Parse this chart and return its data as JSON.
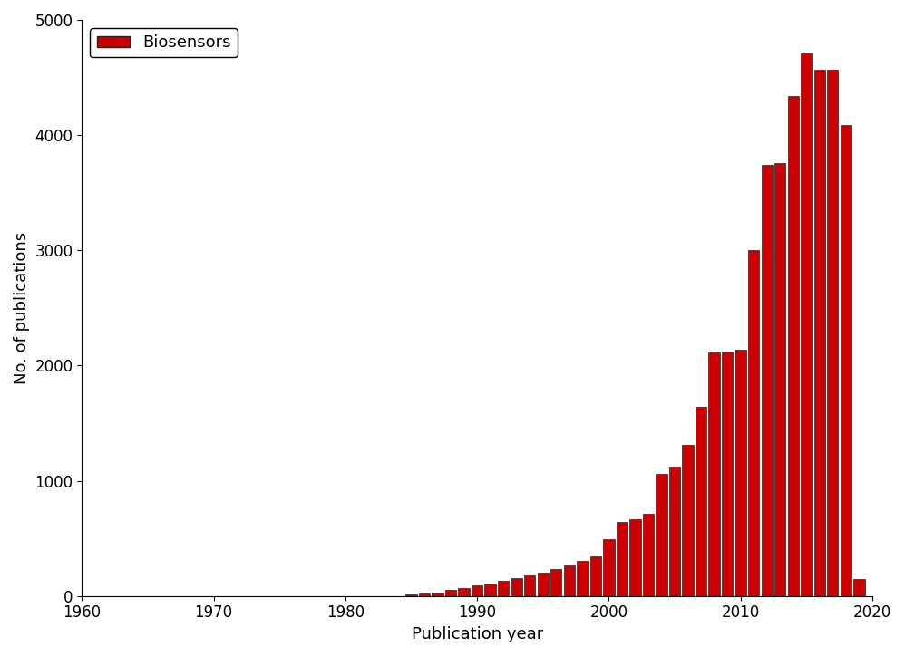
{
  "years": [
    1962,
    1963,
    1964,
    1965,
    1966,
    1967,
    1968,
    1969,
    1970,
    1971,
    1972,
    1973,
    1974,
    1975,
    1976,
    1977,
    1978,
    1979,
    1980,
    1981,
    1982,
    1983,
    1984,
    1985,
    1986,
    1987,
    1988,
    1989,
    1990,
    1991,
    1992,
    1993,
    1994,
    1995,
    1996,
    1997,
    1998,
    1999,
    2000,
    2001,
    2002,
    2003,
    2004,
    2005,
    2006,
    2007,
    2008,
    2009,
    2010,
    2011,
    2012,
    2013,
    2014,
    2015,
    2016,
    2017,
    2018,
    2019
  ],
  "values": [
    0,
    0,
    0,
    0,
    0,
    0,
    0,
    0,
    0,
    0,
    0,
    0,
    0,
    0,
    0,
    0,
    0,
    0,
    0,
    0,
    0,
    0,
    0,
    10,
    20,
    30,
    50,
    70,
    90,
    110,
    135,
    155,
    175,
    200,
    235,
    265,
    305,
    345,
    490,
    640,
    670,
    710,
    1060,
    1120,
    1310,
    1640,
    2110,
    2120,
    2140,
    3000,
    3740,
    3760,
    4340,
    4710,
    4570,
    4570,
    4090,
    150
  ],
  "bar_color": "#cc0000",
  "bar_edgecolor": "#222222",
  "xlabel": "Publication year",
  "ylabel": "No. of publications",
  "legend_label": "Biosensors",
  "xlim_left": 1960,
  "xlim_right": 2020,
  "ylim_bottom": 0,
  "ylim_top": 5000,
  "yticks": [
    0,
    1000,
    2000,
    3000,
    4000,
    5000
  ],
  "xticks": [
    1960,
    1970,
    1980,
    1990,
    2000,
    2010,
    2020
  ],
  "axis_fontsize": 13,
  "tick_fontsize": 12,
  "legend_fontsize": 13,
  "background_color": "#ffffff",
  "bar_width": 0.85
}
